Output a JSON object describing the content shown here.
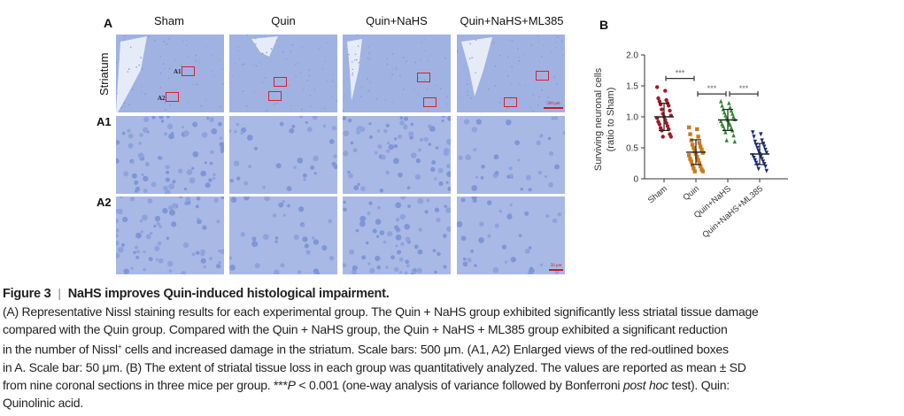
{
  "panel_a": {
    "label": "A",
    "columns": [
      "Sham",
      "Quin",
      "Quin+NaHS",
      "Quin+NaHS+ML385"
    ],
    "rows": [
      "Striatum",
      "A1",
      "A2"
    ],
    "box_labels": [
      "A1",
      "A2"
    ],
    "scale_bar_top": "500 μm",
    "scale_bar_bottom": "50 μm"
  },
  "panel_b": {
    "label": "B"
  },
  "chart_data": {
    "type": "scatter",
    "title": "",
    "xlabel": "",
    "ylabel_line1": "Surviving neuronal cells",
    "ylabel_line2": "(ratio to Sham)",
    "categories": [
      "Sham",
      "Quin",
      "Quin+NaHS",
      "Quin+NaHS+ML385"
    ],
    "yticks": [
      "0",
      "0.5",
      "1.0",
      "1.5",
      "2.0"
    ],
    "ytick_values": [
      0,
      0.5,
      1.0,
      1.5,
      2.0
    ],
    "ylim": [
      0,
      2.0
    ],
    "grid": false,
    "series": [
      {
        "name": "Sham",
        "color": "#9e1b24",
        "marker": "circle",
        "mean": 1.0,
        "sd": 0.22,
        "values": [
          1.48,
          1.42,
          1.3,
          1.27,
          1.25,
          1.22,
          1.2,
          1.18,
          1.12,
          1.1,
          1.05,
          1.02,
          1.0,
          0.98,
          0.95,
          0.92,
          0.9,
          0.88,
          0.85,
          0.82,
          0.8,
          0.78,
          0.72,
          0.68,
          0.68
        ]
      },
      {
        "name": "Quin",
        "color": "#c97a1e",
        "marker": "square",
        "mean": 0.43,
        "sd": 0.2,
        "values": [
          0.83,
          0.8,
          0.72,
          0.68,
          0.62,
          0.58,
          0.55,
          0.52,
          0.5,
          0.47,
          0.44,
          0.42,
          0.4,
          0.38,
          0.35,
          0.32,
          0.3,
          0.28,
          0.25,
          0.22,
          0.2,
          0.17,
          0.15,
          0.12,
          0.12
        ]
      },
      {
        "name": "Quin+NaHS",
        "color": "#2c8a2c",
        "marker": "triangle",
        "mean": 0.95,
        "sd": 0.17,
        "values": [
          1.25,
          1.22,
          1.18,
          1.15,
          1.12,
          1.1,
          1.07,
          1.05,
          1.02,
          1.0,
          0.98,
          0.96,
          0.95,
          0.93,
          0.9,
          0.88,
          0.87,
          0.85,
          0.82,
          0.8,
          0.78,
          0.75,
          0.7,
          0.62,
          0.6
        ]
      },
      {
        "name": "Quin+NaHS+ML385",
        "color": "#1c2a80",
        "marker": "triangle-down",
        "mean": 0.4,
        "sd": 0.17,
        "values": [
          0.75,
          0.72,
          0.68,
          0.62,
          0.6,
          0.57,
          0.55,
          0.52,
          0.5,
          0.47,
          0.45,
          0.42,
          0.4,
          0.38,
          0.36,
          0.34,
          0.32,
          0.3,
          0.28,
          0.26,
          0.24,
          0.22,
          0.2,
          0.16,
          0.13
        ]
      }
    ],
    "significance": [
      {
        "from": "Sham",
        "to": "Quin",
        "label": "***",
        "y": 1.62
      },
      {
        "from": "Quin",
        "to": "Quin+NaHS",
        "label": "***",
        "y": 1.37
      },
      {
        "from": "Quin+NaHS",
        "to": "Quin+NaHS+ML385",
        "label": "***",
        "y": 1.37
      }
    ]
  },
  "caption": {
    "figure_label": "Figure 3",
    "title": "NaHS improves Quin-induced histological impairment.",
    "line1": "(A) Representative Nissl staining results for each experimental group. The Quin + NaHS group exhibited significantly less striatal tissue damage",
    "line2": "compared with the Quin group. Compared with the Quin + NaHS group, the Quin + NaHS + ML385 group exhibited a significant reduction",
    "line3a": "in the number of Nissl",
    "line3sup": "+",
    "line3b": " cells and increased damage in the striatum. Scale bars: 500 μm. (A1, A2) Enlarged views of the red-outlined boxes",
    "line4": "in A. Scale bar: 50 μm. (B) The extent of striatal tissue loss in each group was quantitatively analyzed. The values are reported as mean ± SD",
    "line5a": "from nine coronal sections in three mice per group. ***",
    "line5p": "P",
    "line5b": " < 0.001 (one-way analysis of variance followed by Bonferroni ",
    "line5i": "post hoc",
    "line5c": " test). Quin:",
    "line6": "Quinolinic acid."
  }
}
